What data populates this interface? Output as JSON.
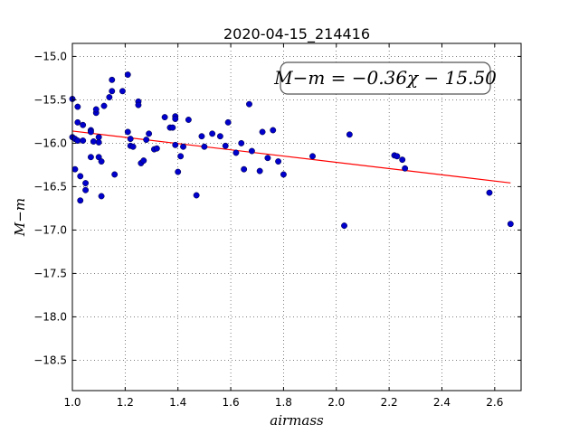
{
  "chart_data": {
    "type": "scatter",
    "title": "2020-04-15_214416",
    "xlabel": "airmass",
    "ylabel": "M−m",
    "xlim": [
      1.0,
      2.7
    ],
    "ylim": [
      -18.85,
      -14.85
    ],
    "x_ticks": [
      1.0,
      1.2,
      1.4,
      1.6,
      1.8,
      2.0,
      2.2,
      2.4,
      2.6
    ],
    "x_tick_labels": [
      "1.0",
      "1.2",
      "1.4",
      "1.6",
      "1.8",
      "2.0",
      "2.2",
      "2.4",
      "2.6"
    ],
    "y_ticks": [
      -15.0,
      -15.5,
      -16.0,
      -16.5,
      -17.0,
      -17.5,
      -18.0,
      -18.5
    ],
    "y_tick_labels": [
      "−15.0",
      "−15.5",
      "−16.0",
      "−16.5",
      "−17.0",
      "−17.5",
      "−18.0",
      "−18.5"
    ],
    "grid": true,
    "annotation": "M−m = −0.36χ − 15.50",
    "annotation_placement": "top-right",
    "series": [
      {
        "type": "scatter",
        "color": "#0000cc",
        "points": [
          [
            1.0,
            -15.49
          ],
          [
            1.0,
            -15.93
          ],
          [
            1.01,
            -15.95
          ],
          [
            1.01,
            -16.3
          ],
          [
            1.02,
            -15.58
          ],
          [
            1.02,
            -15.76
          ],
          [
            1.02,
            -15.97
          ],
          [
            1.03,
            -16.66
          ],
          [
            1.03,
            -16.38
          ],
          [
            1.04,
            -15.79
          ],
          [
            1.04,
            -15.97
          ],
          [
            1.05,
            -16.54
          ],
          [
            1.05,
            -16.46
          ],
          [
            1.07,
            -15.85
          ],
          [
            1.07,
            -15.87
          ],
          [
            1.07,
            -16.16
          ],
          [
            1.08,
            -15.98
          ],
          [
            1.09,
            -15.65
          ],
          [
            1.09,
            -15.61
          ],
          [
            1.1,
            -15.93
          ],
          [
            1.1,
            -15.99
          ],
          [
            1.1,
            -16.16
          ],
          [
            1.11,
            -16.21
          ],
          [
            1.11,
            -16.61
          ],
          [
            1.12,
            -15.57
          ],
          [
            1.14,
            -15.47
          ],
          [
            1.15,
            -15.27
          ],
          [
            1.15,
            -15.4
          ],
          [
            1.16,
            -16.36
          ],
          [
            1.19,
            -15.4
          ],
          [
            1.21,
            -15.21
          ],
          [
            1.21,
            -15.87
          ],
          [
            1.22,
            -15.95
          ],
          [
            1.22,
            -16.03
          ],
          [
            1.23,
            -16.04
          ],
          [
            1.25,
            -15.52
          ],
          [
            1.25,
            -15.56
          ],
          [
            1.26,
            -16.23
          ],
          [
            1.27,
            -16.2
          ],
          [
            1.28,
            -15.96
          ],
          [
            1.29,
            -15.89
          ],
          [
            1.31,
            -16.07
          ],
          [
            1.32,
            -16.06
          ],
          [
            1.35,
            -15.7
          ],
          [
            1.37,
            -15.82
          ],
          [
            1.38,
            -15.82
          ],
          [
            1.39,
            -15.69
          ],
          [
            1.39,
            -15.72
          ],
          [
            1.39,
            -16.02
          ],
          [
            1.4,
            -16.33
          ],
          [
            1.41,
            -16.15
          ],
          [
            1.42,
            -16.04
          ],
          [
            1.44,
            -15.73
          ],
          [
            1.47,
            -16.6
          ],
          [
            1.49,
            -15.92
          ],
          [
            1.5,
            -16.04
          ],
          [
            1.53,
            -15.89
          ],
          [
            1.56,
            -15.92
          ],
          [
            1.58,
            -16.03
          ],
          [
            1.59,
            -15.76
          ],
          [
            1.62,
            -16.11
          ],
          [
            1.64,
            -16.0
          ],
          [
            1.65,
            -16.3
          ],
          [
            1.67,
            -15.55
          ],
          [
            1.68,
            -16.09
          ],
          [
            1.71,
            -16.32
          ],
          [
            1.72,
            -15.87
          ],
          [
            1.74,
            -16.17
          ],
          [
            1.76,
            -15.85
          ],
          [
            1.78,
            -16.21
          ],
          [
            1.8,
            -16.36
          ],
          [
            1.91,
            -16.15
          ],
          [
            2.03,
            -16.95
          ],
          [
            2.05,
            -15.9
          ],
          [
            2.22,
            -16.14
          ],
          [
            2.23,
            -16.15
          ],
          [
            2.25,
            -16.19
          ],
          [
            2.26,
            -16.29
          ],
          [
            2.58,
            -16.57
          ],
          [
            2.66,
            -16.93
          ]
        ]
      },
      {
        "type": "line",
        "color": "#ff0000",
        "slope": -0.36,
        "intercept": -15.5,
        "x_range": [
          1.0,
          2.66
        ]
      }
    ]
  }
}
